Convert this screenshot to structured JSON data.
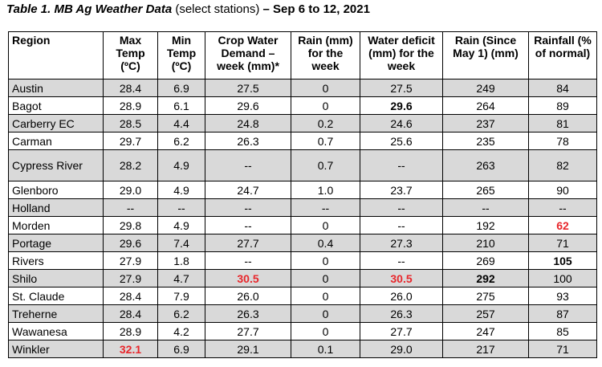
{
  "caption": {
    "title": "Table 1. MB Ag Weather Data",
    "subtitle": "(select stations)",
    "date": "– Sep 6 to 12, 2021"
  },
  "columns": [
    "Region",
    "Max Temp (ºC)",
    "Min Temp (ºC)",
    "Crop Water Demand – week (mm)*",
    "Rain (mm) for the week",
    "Water deficit (mm) for the week",
    "Rain (Since May 1) (mm)",
    "Rainfall (% of normal)"
  ],
  "rows": [
    {
      "cells": [
        "Austin",
        "28.4",
        "6.9",
        "27.5",
        "0",
        "27.5",
        "249",
        "84"
      ],
      "shaded": true
    },
    {
      "cells": [
        "Bagot",
        "28.9",
        "6.1",
        "29.6",
        "0",
        "29.6",
        "264",
        "89"
      ],
      "shaded": false,
      "emphasis": {
        "5": "bold"
      }
    },
    {
      "cells": [
        "Carberry EC",
        "28.5",
        "4.4",
        "24.8",
        "0.2",
        "24.6",
        "237",
        "81"
      ],
      "shaded": true
    },
    {
      "cells": [
        "Carman",
        "29.7",
        "6.2",
        "26.3",
        "0.7",
        "25.6",
        "235",
        "78"
      ],
      "shaded": false
    },
    {
      "cells": [
        "Cypress River",
        "28.2",
        "4.9",
        "--",
        "0.7",
        "--",
        "263",
        "82"
      ],
      "shaded": true,
      "tall": true
    },
    {
      "cells": [
        "Glenboro",
        "29.0",
        "4.9",
        "24.7",
        "1.0",
        "23.7",
        "265",
        "90"
      ],
      "shaded": false
    },
    {
      "cells": [
        "Holland",
        "--",
        "--",
        "--",
        "--",
        "--",
        "--",
        "--"
      ],
      "shaded": true
    },
    {
      "cells": [
        "Morden",
        "29.8",
        "4.9",
        "--",
        "0",
        "--",
        "192",
        "62"
      ],
      "shaded": false,
      "emphasis": {
        "7": "red"
      }
    },
    {
      "cells": [
        "Portage",
        "29.6",
        "7.4",
        "27.7",
        "0.4",
        "27.3",
        "210",
        "71"
      ],
      "shaded": true
    },
    {
      "cells": [
        "Rivers",
        "27.9",
        "1.8",
        "--",
        "0",
        "--",
        "269",
        "105"
      ],
      "shaded": false,
      "emphasis": {
        "7": "bold"
      }
    },
    {
      "cells": [
        "Shilo",
        "27.9",
        "4.7",
        "30.5",
        "0",
        "30.5",
        "292",
        "100"
      ],
      "shaded": true,
      "emphasis": {
        "3": "red",
        "5": "red",
        "6": "bold"
      }
    },
    {
      "cells": [
        "St. Claude",
        "28.4",
        "7.9",
        "26.0",
        "0",
        "26.0",
        "275",
        "93"
      ],
      "shaded": false
    },
    {
      "cells": [
        "Treherne",
        "28.4",
        "6.2",
        "26.3",
        "0",
        "26.3",
        "257",
        "87"
      ],
      "shaded": true
    },
    {
      "cells": [
        "Wawanesa",
        "28.9",
        "4.2",
        "27.7",
        "0",
        "27.7",
        "247",
        "85"
      ],
      "shaded": false
    },
    {
      "cells": [
        "Winkler",
        "32.1",
        "6.9",
        "29.1",
        "0.1",
        "29.0",
        "217",
        "71"
      ],
      "shaded": true,
      "emphasis": {
        "1": "red"
      }
    }
  ],
  "colors": {
    "shade": "#d9d9d9",
    "highlight_red": "#e8262b"
  }
}
